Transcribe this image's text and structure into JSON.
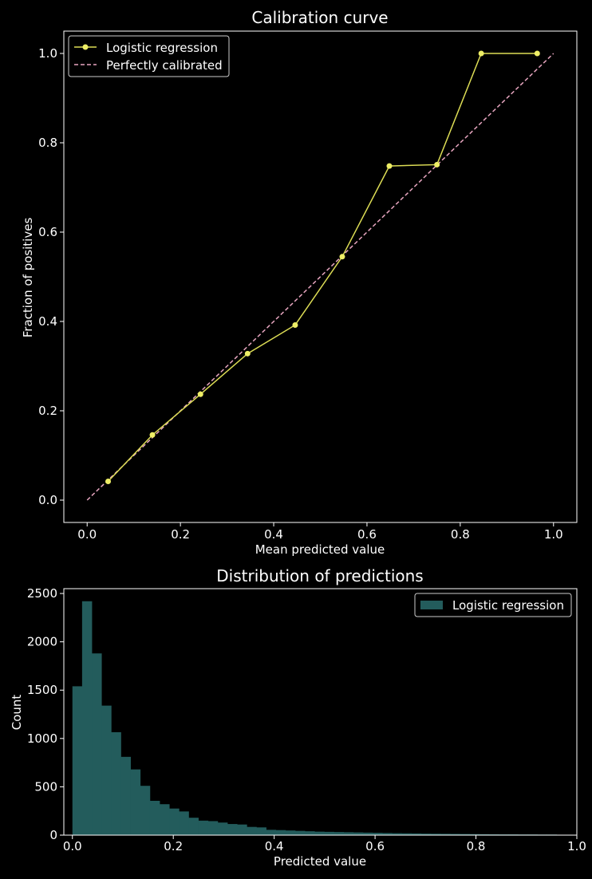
{
  "colors": {
    "background": "#000000",
    "foreground": "#ffffff",
    "logistic_line": "#dddd55",
    "logistic_marker": "#eeee66",
    "reference_line": "#e8a6c0",
    "histogram_fill": "#235c5c"
  },
  "chart_data": [
    {
      "type": "line",
      "title": "Calibration curve",
      "xlabel": "Mean predicted value",
      "ylabel": "Fraction of positives",
      "xlim": [
        -0.05,
        1.05
      ],
      "ylim": [
        -0.05,
        1.05
      ],
      "xticks": [
        "0.0",
        "0.2",
        "0.4",
        "0.6",
        "0.8",
        "1.0"
      ],
      "yticks": [
        "0.0",
        "0.2",
        "0.4",
        "0.6",
        "0.8",
        "1.0"
      ],
      "legend_position": "top-left",
      "series": [
        {
          "name": "Logistic regression",
          "style": "solid line with circle markers",
          "x": [
            0.045,
            0.14,
            0.243,
            0.344,
            0.446,
            0.547,
            0.648,
            0.75,
            0.845,
            0.965
          ],
          "y": [
            0.042,
            0.146,
            0.237,
            0.328,
            0.392,
            0.545,
            0.748,
            0.751,
            1.0,
            1.0
          ]
        },
        {
          "name": "Perfectly calibrated",
          "style": "dashed line",
          "x": [
            0,
            1
          ],
          "y": [
            0,
            1
          ]
        }
      ]
    },
    {
      "type": "bar",
      "title": "Distribution of predictions",
      "xlabel": "Predicted value",
      "ylabel": "Count",
      "xlim": [
        -0.017,
        1.0
      ],
      "ylim": [
        0,
        2550
      ],
      "xticks": [
        "0.0",
        "0.2",
        "0.4",
        "0.6",
        "0.8",
        "1.0"
      ],
      "yticks": [
        "0",
        "500",
        "1000",
        "1500",
        "2000",
        "2500"
      ],
      "legend_position": "top-right",
      "bin_range": [
        0.0,
        0.96
      ],
      "series": [
        {
          "name": "Logistic regression",
          "values": [
            1540,
            2420,
            1880,
            1340,
            1065,
            810,
            680,
            510,
            355,
            320,
            275,
            245,
            180,
            150,
            145,
            130,
            115,
            110,
            85,
            80,
            55,
            52,
            48,
            44,
            40,
            36,
            34,
            32,
            30,
            28,
            26,
            24,
            22,
            20,
            19,
            18,
            16,
            15,
            14,
            13,
            12,
            11,
            10,
            9,
            8,
            8,
            7,
            7,
            6,
            6
          ]
        }
      ]
    }
  ]
}
